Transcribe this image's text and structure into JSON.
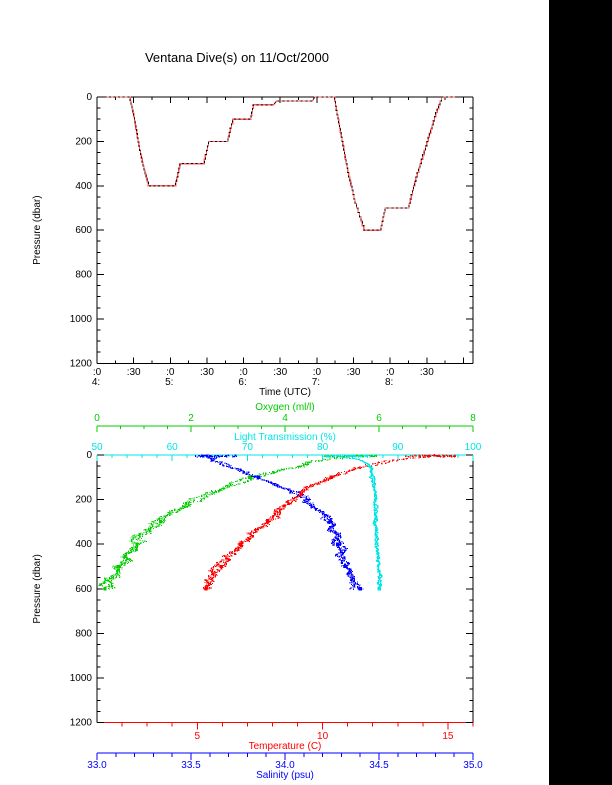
{
  "title": "Ventana Dive(s) on 11/Oct/2000",
  "chart_data": [
    {
      "type": "line",
      "name": "dive-depth-profile",
      "xlabel": "Time (UTC)",
      "ylabel": "Pressure (dbar)",
      "xlim_hours": [
        4.0,
        9.13
      ],
      "ylim": [
        1200,
        0
      ],
      "grid": false,
      "pressure_ticks": [
        {
          "v": 0,
          "label": "0"
        },
        {
          "v": 200,
          "label": "200"
        },
        {
          "v": 400,
          "label": "400"
        },
        {
          "v": 600,
          "label": "600"
        },
        {
          "v": 800,
          "label": "800"
        },
        {
          "v": 1000,
          "label": "1000"
        },
        {
          "v": 1200,
          "label": "1200"
        }
      ],
      "time_ticks": [
        {
          "t": 4.0,
          "min": ":0",
          "hour": "4:"
        },
        {
          "t": 4.5,
          "min": ":30"
        },
        {
          "t": 5.0,
          "min": ":0",
          "hour": "5:"
        },
        {
          "t": 5.5,
          "min": ":30"
        },
        {
          "t": 6.0,
          "min": ":0",
          "hour": "6:"
        },
        {
          "t": 6.5,
          "min": ":30"
        },
        {
          "t": 7.0,
          "min": ":0",
          "hour": "7:"
        },
        {
          "t": 7.5,
          "min": ":30"
        },
        {
          "t": 8.0,
          "min": ":0",
          "hour": "8:"
        },
        {
          "t": 8.5,
          "min": ":30"
        },
        {
          "t": 9.0
        }
      ],
      "series": [
        {
          "name": "dive-profile",
          "color": "#ff5a5a",
          "dash_overlay_color": "#000000",
          "points_time_pressure": [
            [
              4.1,
              0
            ],
            [
              4.44,
              0
            ],
            [
              4.5,
              90
            ],
            [
              4.58,
              240
            ],
            [
              4.64,
              330
            ],
            [
              4.7,
              400
            ],
            [
              5.06,
              400
            ],
            [
              5.13,
              300
            ],
            [
              5.45,
              300
            ],
            [
              5.52,
              200
            ],
            [
              5.77,
              200
            ],
            [
              5.85,
              100
            ],
            [
              6.09,
              100
            ],
            [
              6.13,
              35
            ],
            [
              6.41,
              35
            ],
            [
              6.45,
              18
            ],
            [
              6.94,
              18
            ],
            [
              6.97,
              0
            ],
            [
              7.23,
              0
            ],
            [
              7.32,
              160
            ],
            [
              7.42,
              340
            ],
            [
              7.52,
              480
            ],
            [
              7.64,
              600
            ],
            [
              7.86,
              600
            ],
            [
              7.93,
              500
            ],
            [
              8.24,
              500
            ],
            [
              8.35,
              360
            ],
            [
              8.5,
              200
            ],
            [
              8.62,
              70
            ],
            [
              8.7,
              0
            ],
            [
              8.91,
              0
            ]
          ]
        }
      ]
    },
    {
      "type": "scatter",
      "name": "ctd-profiles",
      "ylabel": "Pressure (dbar)",
      "ylim": [
        1200,
        0
      ],
      "grid": false,
      "max_depth": 600,
      "pressure_ticks": [
        {
          "v": 0,
          "label": "0"
        },
        {
          "v": 200,
          "label": "200"
        },
        {
          "v": 400,
          "label": "400"
        },
        {
          "v": 600,
          "label": "600"
        },
        {
          "v": 800,
          "label": "800"
        },
        {
          "v": 1000,
          "label": "1000"
        },
        {
          "v": 1200,
          "label": "1200"
        }
      ],
      "axes": {
        "oxygen": {
          "label": "Oxygen (ml/l)",
          "color": "#00cc00",
          "range": [
            0,
            8
          ],
          "ticks": [
            {
              "v": 0,
              "label": "0"
            },
            {
              "v": 2,
              "label": "2"
            },
            {
              "v": 4,
              "label": "4"
            },
            {
              "v": 6,
              "label": "6"
            },
            {
              "v": 8,
              "label": "8"
            }
          ],
          "minor_step": 0.5
        },
        "transmission": {
          "label": "Light Transmission (%)",
          "color": "#00e5e5",
          "range": [
            50,
            100
          ],
          "ticks": [
            {
              "v": 50,
              "label": "50"
            },
            {
              "v": 60,
              "label": "60"
            },
            {
              "v": 70,
              "label": "70"
            },
            {
              "v": 80,
              "label": "80"
            },
            {
              "v": 90,
              "label": "90"
            },
            {
              "v": 100,
              "label": "100"
            }
          ],
          "minor_step": 2
        },
        "temperature": {
          "label": "Temperature (C)",
          "color": "#ff0000",
          "range": [
            1,
            16
          ],
          "ticks": [
            {
              "v": 5,
              "label": "5"
            },
            {
              "v": 10,
              "label": "10"
            },
            {
              "v": 15,
              "label": "15"
            }
          ],
          "minor_step": 1
        },
        "salinity": {
          "label": "Salinity (psu)",
          "color": "#0000ff",
          "range": [
            33.0,
            35.0
          ],
          "ticks": [
            {
              "v": 33.0,
              "label": "33.0"
            },
            {
              "v": 33.5,
              "label": "33.5"
            },
            {
              "v": 34.0,
              "label": "34.0"
            },
            {
              "v": 34.5,
              "label": "34.5"
            },
            {
              "v": 35.0,
              "label": "35.0"
            }
          ],
          "minor_step": 0.1
        }
      },
      "series": [
        {
          "name": "oxygen",
          "axis": "oxygen",
          "color": "#00cc00",
          "jitter": 0.08,
          "marker_depths": [
            100,
            300,
            400,
            500,
            600
          ],
          "surface": {
            "pmax": 9,
            "range": [
              4.8,
              5.95
            ],
            "n": 70
          },
          "anchors_pressure_value": [
            [
              0,
              5.6
            ],
            [
              10,
              5.3
            ],
            [
              20,
              4.9
            ],
            [
              30,
              4.6
            ],
            [
              50,
              4.3
            ],
            [
              75,
              3.7
            ],
            [
              100,
              3.25
            ],
            [
              125,
              2.9
            ],
            [
              150,
              2.6
            ],
            [
              175,
              2.35
            ],
            [
              200,
              2.1
            ],
            [
              250,
              1.7
            ],
            [
              300,
              1.35
            ],
            [
              350,
              1.05
            ],
            [
              400,
              0.85
            ],
            [
              450,
              0.6
            ],
            [
              500,
              0.45
            ],
            [
              550,
              0.3
            ],
            [
              600,
              0.17
            ]
          ]
        },
        {
          "name": "salinity",
          "axis": "salinity",
          "color": "#0000ff",
          "jitter": 0.016,
          "marker_depths": [
            100,
            300,
            400,
            500,
            600
          ],
          "surface": {
            "pmax": 9,
            "range": [
              33.52,
              33.75
            ],
            "n": 55
          },
          "anchors_pressure_value": [
            [
              0,
              33.58
            ],
            [
              20,
              33.62
            ],
            [
              50,
              33.7
            ],
            [
              75,
              33.77
            ],
            [
              100,
              33.86
            ],
            [
              125,
              33.93
            ],
            [
              150,
              34.01
            ],
            [
              175,
              34.07
            ],
            [
              200,
              34.12
            ],
            [
              250,
              34.19
            ],
            [
              300,
              34.24
            ],
            [
              350,
              34.26
            ],
            [
              400,
              34.28
            ],
            [
              450,
              34.3
            ],
            [
              500,
              34.32
            ],
            [
              550,
              34.36
            ],
            [
              600,
              34.4
            ]
          ]
        },
        {
          "name": "temperature",
          "axis": "temperature",
          "color": "#ff0000",
          "jitter": 0.12,
          "marker_depths": [
            100,
            300,
            400,
            500
          ],
          "surface": {
            "pmax": 8,
            "range": [
              13.3,
              15.3
            ],
            "n": 80
          },
          "anchors_pressure_value": [
            [
              0,
              14.6
            ],
            [
              10,
              14.0
            ],
            [
              20,
              13.2
            ],
            [
              30,
              12.6
            ],
            [
              50,
              11.8
            ],
            [
              75,
              11.0
            ],
            [
              100,
              10.35
            ],
            [
              125,
              9.8
            ],
            [
              150,
              9.4
            ],
            [
              175,
              9.1
            ],
            [
              200,
              8.8
            ],
            [
              250,
              8.2
            ],
            [
              300,
              7.8
            ],
            [
              350,
              7.2
            ],
            [
              400,
              6.72
            ],
            [
              450,
              6.3
            ],
            [
              500,
              5.95
            ],
            [
              550,
              5.6
            ],
            [
              600,
              5.35
            ]
          ]
        },
        {
          "name": "transmission",
          "axis": "transmission",
          "color": "#00e5e5",
          "jitter": 0.14,
          "marker_depths": [
            600
          ],
          "surface": {
            "pmax": 9,
            "range": [
              80.0,
              86.5
            ],
            "n": 60
          },
          "anchors_pressure_value": [
            [
              0,
              81.5
            ],
            [
              10,
              83.0
            ],
            [
              20,
              84.8
            ],
            [
              40,
              86.0
            ],
            [
              60,
              86.4
            ],
            [
              100,
              86.6
            ],
            [
              150,
              86.8
            ],
            [
              200,
              86.95
            ],
            [
              300,
              87.15
            ],
            [
              400,
              87.3
            ],
            [
              500,
              87.45
            ],
            [
              600,
              87.55
            ]
          ]
        }
      ]
    }
  ]
}
